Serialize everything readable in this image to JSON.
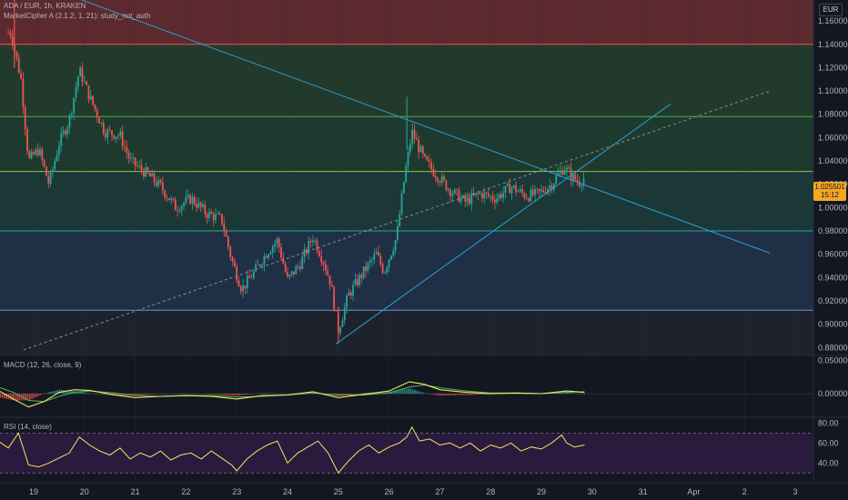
{
  "header": {
    "symbol_line": "ADA / EUR, 1h, KRAKEN",
    "indicator_line": "MarketCipher A (2.1.2, 1, 21): study_not_auth",
    "currency": "EUR"
  },
  "last_price": {
    "value": "1.025501",
    "countdown": "15:12"
  },
  "macd_legend": "MACD (12, 26, close, 9)",
  "rsi_legend": "RSI (14, close)",
  "colors": {
    "background": "#131722",
    "up": "#26a69a",
    "down": "#ef5350",
    "trendline": "#2a9fd6",
    "macd_line": "#f5e663",
    "signal_line": "#4caf50",
    "rsi_line": "#f5e663",
    "rsi_band": "#2a1a3d",
    "last_price": "#f5a623"
  },
  "chart_data": [
    {
      "type": "candlestick",
      "title": "",
      "x_ticks": [
        "19",
        "20",
        "21",
        "22",
        "23",
        "24",
        "25",
        "26",
        "27",
        "28",
        "29",
        "30",
        "31",
        "Apr",
        "2",
        "3"
      ],
      "y_ticks": [
        "1.160000",
        "1.140000",
        "1.120000",
        "1.100000",
        "1.080000",
        "1.060000",
        "1.040000",
        "1.020000",
        "1.000000",
        "0.980000",
        "0.960000",
        "0.940000",
        "0.920000",
        "0.900000",
        "0.880000"
      ],
      "ylim": [
        0.874,
        1.178
      ],
      "zones": [
        {
          "from": 1.14,
          "to": 1.178,
          "color": "#5c2a2e"
        },
        {
          "from": 1.078,
          "to": 1.14,
          "color": "#213a2c"
        },
        {
          "from": 1.031,
          "to": 1.078,
          "color": "#1e3a2e"
        },
        {
          "from": 0.98,
          "to": 1.031,
          "color": "#1b3836"
        },
        {
          "from": 0.912,
          "to": 0.98,
          "color": "#1f2f45"
        },
        {
          "from": 0.874,
          "to": 0.912,
          "color": "#1e222d"
        }
      ],
      "levels": [
        {
          "value": 1.14,
          "color": "#ef5350"
        },
        {
          "value": 1.078,
          "color": "#4caf50"
        },
        {
          "value": 1.031,
          "color": "#8bc34a"
        },
        {
          "value": 0.98,
          "color": "#26a69a"
        },
        {
          "value": 0.912,
          "color": "#5b9bd5"
        }
      ],
      "price_anchors": [
        {
          "day": 18.55,
          "price": 1.15
        },
        {
          "day": 18.75,
          "price": 1.11
        },
        {
          "day": 18.9,
          "price": 1.04
        },
        {
          "day": 19.1,
          "price": 1.05
        },
        {
          "day": 19.3,
          "price": 1.02
        },
        {
          "day": 19.5,
          "price": 1.055
        },
        {
          "day": 19.7,
          "price": 1.075
        },
        {
          "day": 19.9,
          "price": 1.118
        },
        {
          "day": 20.1,
          "price": 1.095
        },
        {
          "day": 20.4,
          "price": 1.065
        },
        {
          "day": 20.7,
          "price": 1.062
        },
        {
          "day": 20.9,
          "price": 1.04
        },
        {
          "day": 21.2,
          "price": 1.03
        },
        {
          "day": 21.5,
          "price": 1.018
        },
        {
          "day": 21.8,
          "price": 1.0
        },
        {
          "day": 22.1,
          "price": 1.008
        },
        {
          "day": 22.4,
          "price": 0.995
        },
        {
          "day": 22.7,
          "price": 0.99
        },
        {
          "day": 22.9,
          "price": 0.955
        },
        {
          "day": 23.1,
          "price": 0.93
        },
        {
          "day": 23.35,
          "price": 0.945
        },
        {
          "day": 23.6,
          "price": 0.962
        },
        {
          "day": 23.8,
          "price": 0.972
        },
        {
          "day": 24.0,
          "price": 0.938
        },
        {
          "day": 24.25,
          "price": 0.952
        },
        {
          "day": 24.5,
          "price": 0.975
        },
        {
          "day": 24.7,
          "price": 0.955
        },
        {
          "day": 24.85,
          "price": 0.935
        },
        {
          "day": 25.0,
          "price": 0.895
        },
        {
          "day": 25.2,
          "price": 0.925
        },
        {
          "day": 25.5,
          "price": 0.945
        },
        {
          "day": 25.75,
          "price": 0.96
        },
        {
          "day": 25.9,
          "price": 0.945
        },
        {
          "day": 26.15,
          "price": 0.975
        },
        {
          "day": 26.3,
          "price": 1.025
        },
        {
          "day": 26.45,
          "price": 1.065
        },
        {
          "day": 26.7,
          "price": 1.04
        },
        {
          "day": 26.9,
          "price": 1.03
        },
        {
          "day": 27.2,
          "price": 1.015
        },
        {
          "day": 27.5,
          "price": 1.005
        },
        {
          "day": 27.8,
          "price": 1.012
        },
        {
          "day": 28.1,
          "price": 1.008
        },
        {
          "day": 28.4,
          "price": 1.018
        },
        {
          "day": 28.7,
          "price": 1.01
        },
        {
          "day": 28.95,
          "price": 1.012
        },
        {
          "day": 29.2,
          "price": 1.02
        },
        {
          "day": 29.45,
          "price": 1.035
        },
        {
          "day": 29.6,
          "price": 1.026
        },
        {
          "day": 29.75,
          "price": 1.022
        },
        {
          "day": 29.85,
          "price": 1.026
        }
      ],
      "last_close": 1.025501,
      "session_high": 1.178,
      "session_low": 0.883,
      "trendlines": [
        {
          "x1": 19.95,
          "y1": 1.178,
          "x2": 33.5,
          "y2": 0.961,
          "style": "solid"
        },
        {
          "x1": 24.95,
          "y1": 0.883,
          "x2": 31.55,
          "y2": 1.089,
          "style": "solid"
        },
        {
          "x1": 18.8,
          "y1": 0.878,
          "x2": 33.5,
          "y2": 1.1,
          "style": "dashed"
        }
      ]
    },
    {
      "type": "line",
      "title": "MACD (12, 26, close, 9)",
      "y_ticks": [
        "0.050000",
        "0.000000"
      ],
      "ylim": [
        -0.03,
        0.052
      ],
      "series": [
        {
          "name": "MACD",
          "points": [
            [
              18.3,
              0.005
            ],
            [
              18.6,
              -0.008
            ],
            [
              18.9,
              -0.02
            ],
            [
              19.2,
              -0.012
            ],
            [
              19.5,
              0.002
            ],
            [
              19.8,
              0.006
            ],
            [
              20.1,
              0.005
            ],
            [
              20.6,
              -0.002
            ],
            [
              21.0,
              -0.006
            ],
            [
              21.5,
              -0.004
            ],
            [
              22.0,
              -0.003
            ],
            [
              22.5,
              -0.004
            ],
            [
              23.0,
              -0.008
            ],
            [
              23.5,
              -0.003
            ],
            [
              24.0,
              -0.002
            ],
            [
              24.5,
              0.003
            ],
            [
              25.0,
              -0.006
            ],
            [
              25.5,
              -0.001
            ],
            [
              26.0,
              0.004
            ],
            [
              26.4,
              0.018
            ],
            [
              26.7,
              0.014
            ],
            [
              27.0,
              0.006
            ],
            [
              27.5,
              0.002
            ],
            [
              28.0,
              0.0
            ],
            [
              28.5,
              0.001
            ],
            [
              29.0,
              0.0
            ],
            [
              29.5,
              0.004
            ],
            [
              29.85,
              0.002
            ]
          ]
        },
        {
          "name": "Signal",
          "points": [
            [
              18.3,
              0.01
            ],
            [
              18.6,
              0.002
            ],
            [
              18.9,
              -0.01
            ],
            [
              19.2,
              -0.012
            ],
            [
              19.5,
              -0.004
            ],
            [
              19.8,
              0.002
            ],
            [
              20.1,
              0.004
            ],
            [
              20.6,
              0.001
            ],
            [
              21.0,
              -0.003
            ],
            [
              21.5,
              -0.004
            ],
            [
              22.0,
              -0.003
            ],
            [
              22.5,
              -0.003
            ],
            [
              23.0,
              -0.005
            ],
            [
              23.5,
              -0.004
            ],
            [
              24.0,
              -0.002
            ],
            [
              24.5,
              0.001
            ],
            [
              25.0,
              -0.002
            ],
            [
              25.5,
              -0.002
            ],
            [
              26.0,
              0.001
            ],
            [
              26.4,
              0.01
            ],
            [
              26.7,
              0.013
            ],
            [
              27.0,
              0.009
            ],
            [
              27.5,
              0.004
            ],
            [
              28.0,
              0.001
            ],
            [
              28.5,
              0.001
            ],
            [
              29.0,
              0.0
            ],
            [
              29.5,
              0.002
            ],
            [
              29.85,
              0.003
            ]
          ]
        }
      ]
    },
    {
      "type": "line",
      "title": "RSI (14, close)",
      "y_ticks": [
        "80.00",
        "60.00",
        "40.00"
      ],
      "ylim": [
        22,
        84
      ],
      "bands": [
        30,
        70
      ],
      "series": [
        {
          "name": "RSI",
          "points": [
            [
              18.3,
              62
            ],
            [
              18.5,
              55
            ],
            [
              18.7,
              70
            ],
            [
              18.9,
              38
            ],
            [
              19.1,
              36
            ],
            [
              19.3,
              40
            ],
            [
              19.5,
              45
            ],
            [
              19.7,
              50
            ],
            [
              19.9,
              66
            ],
            [
              20.1,
              58
            ],
            [
              20.3,
              52
            ],
            [
              20.5,
              48
            ],
            [
              20.7,
              55
            ],
            [
              20.9,
              44
            ],
            [
              21.1,
              50
            ],
            [
              21.3,
              46
            ],
            [
              21.5,
              52
            ],
            [
              21.7,
              43
            ],
            [
              21.9,
              48
            ],
            [
              22.1,
              50
            ],
            [
              22.3,
              44
            ],
            [
              22.5,
              52
            ],
            [
              22.7,
              45
            ],
            [
              22.9,
              38
            ],
            [
              23.0,
              32
            ],
            [
              23.2,
              44
            ],
            [
              23.4,
              52
            ],
            [
              23.6,
              58
            ],
            [
              23.8,
              62
            ],
            [
              24.0,
              40
            ],
            [
              24.2,
              50
            ],
            [
              24.4,
              56
            ],
            [
              24.6,
              62
            ],
            [
              24.8,
              50
            ],
            [
              25.0,
              30
            ],
            [
              25.2,
              42
            ],
            [
              25.4,
              52
            ],
            [
              25.6,
              58
            ],
            [
              25.8,
              50
            ],
            [
              26.0,
              56
            ],
            [
              26.2,
              60
            ],
            [
              26.35,
              66
            ],
            [
              26.45,
              76
            ],
            [
              26.6,
              62
            ],
            [
              26.8,
              64
            ],
            [
              27.0,
              58
            ],
            [
              27.2,
              60
            ],
            [
              27.4,
              55
            ],
            [
              27.6,
              60
            ],
            [
              27.8,
              52
            ],
            [
              28.0,
              58
            ],
            [
              28.2,
              55
            ],
            [
              28.4,
              60
            ],
            [
              28.6,
              52
            ],
            [
              28.8,
              56
            ],
            [
              29.0,
              54
            ],
            [
              29.2,
              60
            ],
            [
              29.4,
              68
            ],
            [
              29.5,
              60
            ],
            [
              29.65,
              56
            ],
            [
              29.85,
              58
            ]
          ]
        }
      ]
    }
  ]
}
